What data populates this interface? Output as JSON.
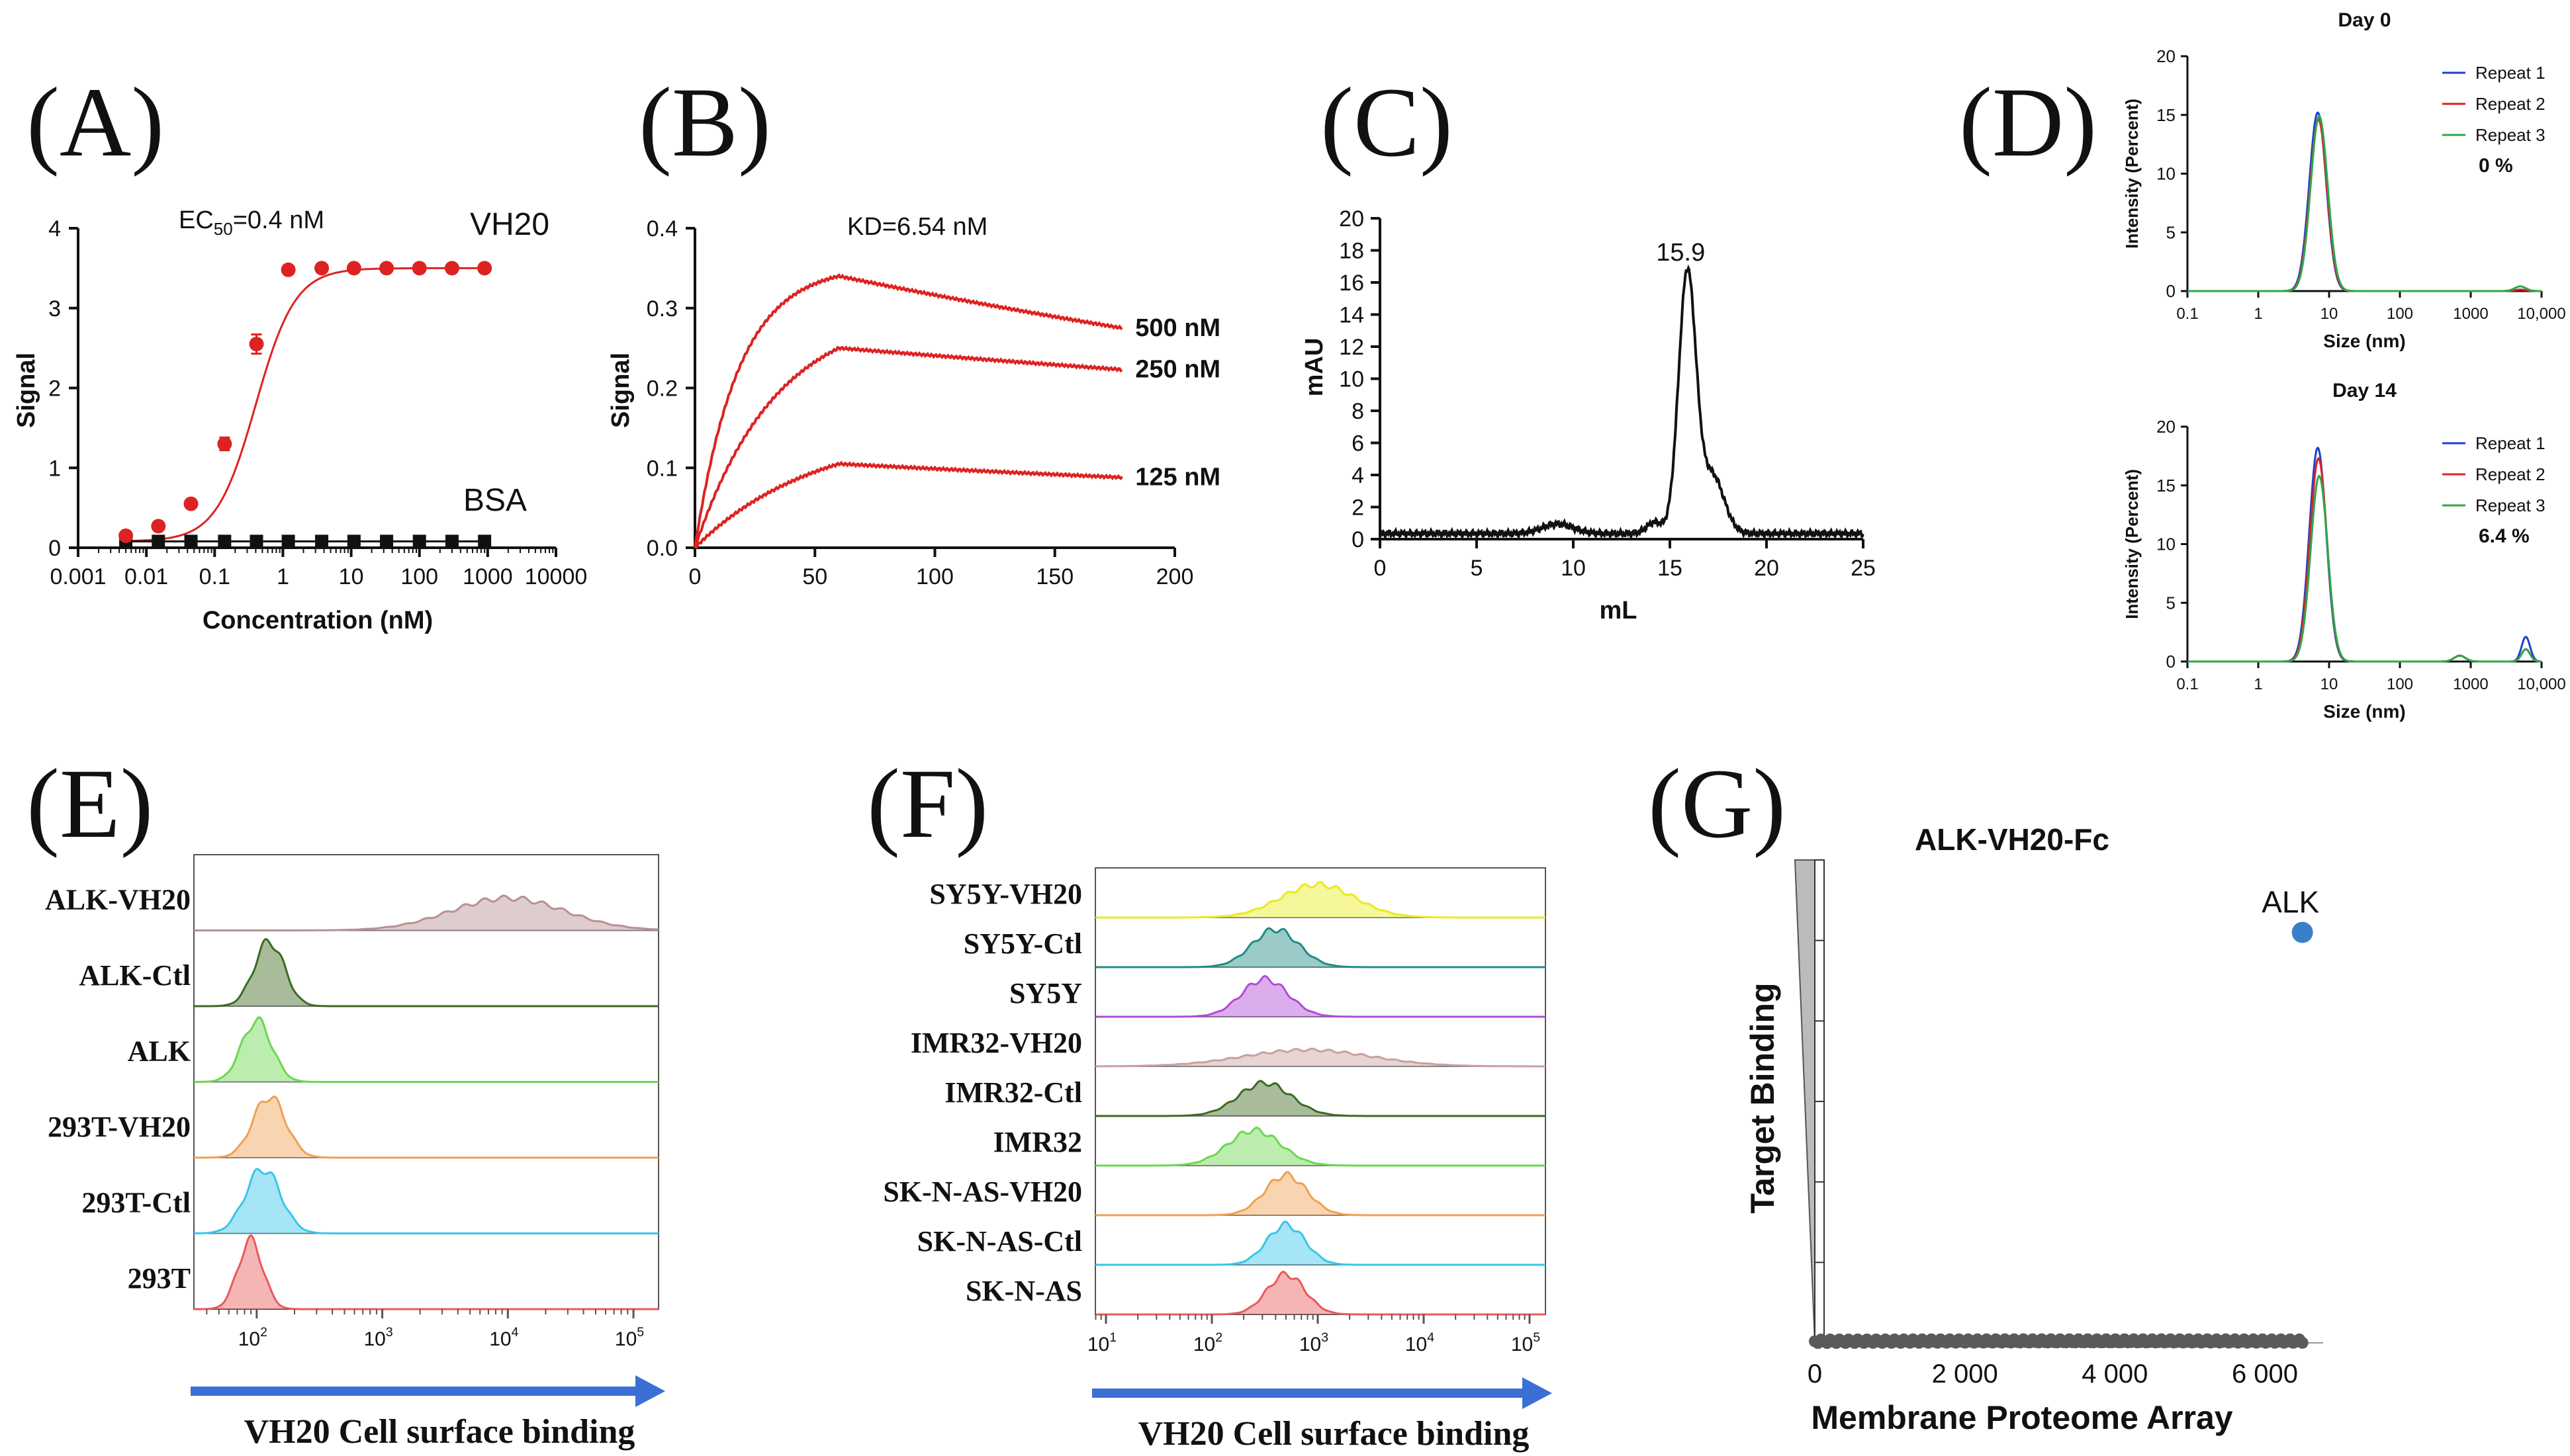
{
  "colors": {
    "red": "#dd2222",
    "blue": "#1f3fd0",
    "green": "#2aa84a",
    "arrow": "#3b6fd4",
    "dot": "#3a80c8"
  },
  "chart_data": [
    {
      "type": "scatter",
      "panel": "(A)",
      "ec50_prefix": "EC",
      "ec50_sub": "50",
      "ec50_value": "=0.4 nM",
      "xlabel": "Concentration (nM)",
      "ylabel": "Signal",
      "xscale": "log",
      "xlim": [
        0.001,
        10000
      ],
      "ylim": [
        0,
        4
      ],
      "xticks": [
        "0.001",
        "0.01",
        "0.1",
        "1",
        "10",
        "100",
        "1000",
        "10000"
      ],
      "yticks": [
        "0",
        "1",
        "2",
        "3",
        "4"
      ],
      "series": [
        {
          "name": "VH20",
          "color": "#dd2222",
          "x": [
            0.005,
            0.015,
            0.045,
            0.14,
            0.41,
            1.2,
            3.7,
            11,
            33,
            100,
            300,
            900
          ],
          "y": [
            0.15,
            0.27,
            0.55,
            1.3,
            2.55,
            3.48,
            3.5,
            3.5,
            3.5,
            3.5,
            3.5,
            3.5
          ],
          "err": [
            0.03,
            0.03,
            0.04,
            0.08,
            0.12,
            0.04,
            0.03,
            0.03,
            0.03,
            0.03,
            0.03,
            0.03
          ]
        },
        {
          "name": "BSA",
          "color": "#111111",
          "x": [
            0.005,
            0.015,
            0.045,
            0.14,
            0.41,
            1.2,
            3.7,
            11,
            33,
            100,
            300,
            900
          ],
          "y": [
            0.08,
            0.08,
            0.08,
            0.08,
            0.08,
            0.08,
            0.08,
            0.08,
            0.08,
            0.08,
            0.08,
            0.08
          ]
        }
      ],
      "fit": {
        "bottom": 0.08,
        "top": 3.5,
        "ec50": 0.4,
        "hill": 1.5
      }
    },
    {
      "type": "line",
      "panel": "(B)",
      "kd": "KD=6.54 nM",
      "ylabel": "Signal",
      "xlim": [
        0,
        200
      ],
      "ylim": [
        0,
        0.4
      ],
      "xticks": [
        "0",
        "50",
        "100",
        "150",
        "200"
      ],
      "yticks": [
        "0.0",
        "0.1",
        "0.2",
        "0.3",
        "0.4"
      ],
      "assoc_end": 60,
      "t_end": 178,
      "series": [
        {
          "name": "500 nM",
          "peak": 0.34,
          "k_on": 0.055,
          "end": 0.275,
          "color": "#dd2222"
        },
        {
          "name": "250 nM",
          "peak": 0.25,
          "k_on": 0.03,
          "end": 0.223,
          "color": "#dd2222"
        },
        {
          "name": "125 nM",
          "peak": 0.105,
          "k_on": 0.02,
          "end": 0.088,
          "color": "#dd2222"
        }
      ]
    },
    {
      "type": "line",
      "panel": "(C)",
      "xlabel": "mL",
      "ylabel": "mAU",
      "xlim": [
        0,
        25
      ],
      "ylim": [
        0,
        20
      ],
      "xticks": [
        "0",
        "5",
        "10",
        "15",
        "20",
        "25"
      ],
      "yticks": [
        "0",
        "2",
        "4",
        "6",
        "8",
        "10",
        "12",
        "14",
        "16",
        "18",
        "20"
      ],
      "peak_label": "15.9",
      "peaks": [
        {
          "x": 15.9,
          "h": 16.2,
          "w": 0.45
        },
        {
          "x": 17.2,
          "h": 3.6,
          "w": 0.6
        },
        {
          "x": 9.2,
          "h": 0.6,
          "w": 0.8
        },
        {
          "x": 14.2,
          "h": 0.7,
          "w": 0.4
        }
      ],
      "baseline": 0.35
    },
    {
      "type": "line",
      "panel": "(D)",
      "xlabel": "Size (nm)",
      "ylabel": "Intensity (Percent)",
      "xticks": [
        "0.1",
        "1",
        "10",
        "100",
        "1000",
        "10,000"
      ],
      "subplots": [
        {
          "title": "Day 0",
          "pct": "0 %",
          "yticks": [
            "0",
            "5",
            "10",
            "15",
            "20"
          ],
          "ylim": [
            0,
            20
          ],
          "series": [
            {
              "name": "Repeat 1",
              "color": "#1f3fd0",
              "peak": 15.2
            },
            {
              "name": "Repeat 2",
              "color": "#dd2222",
              "peak": 14.6
            },
            {
              "name": "Repeat 3",
              "color": "#2aa84a",
              "peak": 14.9
            }
          ],
          "tail": {
            "x": 5000,
            "h": 0.4
          }
        },
        {
          "title": "Day 14",
          "pct": "6.4 %",
          "yticks": [
            "0",
            "5",
            "10",
            "15",
            "20"
          ],
          "ylim": [
            0,
            20
          ],
          "series": [
            {
              "name": "Repeat 1",
              "color": "#1f3fd0",
              "peak": 18.2
            },
            {
              "name": "Repeat 2",
              "color": "#dd2222",
              "peak": 17.3
            },
            {
              "name": "Repeat 3",
              "color": "#2aa84a",
              "peak": 15.8
            }
          ],
          "tail": {
            "x": 700,
            "h": 0.5,
            "x2": 6000,
            "h2": 2.1
          }
        }
      ]
    },
    {
      "type": "area",
      "panel": "(E)",
      "xlabel": "VH20 Cell surface binding",
      "xticks": [
        {
          "b": "10",
          "e": "2"
        },
        {
          "b": "10",
          "e": "3"
        },
        {
          "b": "10",
          "e": "4"
        },
        {
          "b": "10",
          "e": "5"
        }
      ],
      "rows": [
        {
          "label": "ALK-VH20",
          "color": "#b88f92",
          "center": 4.0,
          "spread": 0.45,
          "height": 0.45
        },
        {
          "label": "ALK-Ctl",
          "color": "#3d6a22",
          "center": 2.1,
          "spread": 0.12,
          "height": 0.9
        },
        {
          "label": "ALK",
          "color": "#6bd84e",
          "center": 2.0,
          "spread": 0.12,
          "height": 0.85
        },
        {
          "label": "293T-VH20",
          "color": "#f0a050",
          "center": 2.1,
          "spread": 0.13,
          "height": 0.85
        },
        {
          "label": "293T-Ctl",
          "color": "#38c6e8",
          "center": 2.05,
          "spread": 0.14,
          "height": 0.9
        },
        {
          "label": "293T",
          "color": "#e85a5a",
          "center": 1.95,
          "spread": 0.1,
          "height": 0.95
        }
      ]
    },
    {
      "type": "area",
      "panel": "(F)",
      "xlabel": "VH20 Cell surface binding",
      "xticks": [
        {
          "b": "10",
          "e": "1"
        },
        {
          "b": "10",
          "e": "2"
        },
        {
          "b": "10",
          "e": "3"
        },
        {
          "b": "10",
          "e": "4"
        },
        {
          "b": "10",
          "e": "5"
        }
      ],
      "rows": [
        {
          "label": "SY5Y-VH20",
          "color": "#eaea20",
          "center": 3.0,
          "spread": 0.35,
          "height": 0.7
        },
        {
          "label": "SY5Y-Ctl",
          "color": "#1f8c84",
          "center": 2.6,
          "spread": 0.22,
          "height": 0.8
        },
        {
          "label": "SY5Y",
          "color": "#b24ad8",
          "center": 2.5,
          "spread": 0.22,
          "height": 0.8
        },
        {
          "label": "IMR32-VH20",
          "color": "#c9a0a0",
          "center": 2.9,
          "spread": 0.6,
          "height": 0.35
        },
        {
          "label": "IMR32-Ctl",
          "color": "#3d6a22",
          "center": 2.5,
          "spread": 0.25,
          "height": 0.7
        },
        {
          "label": "IMR32",
          "color": "#6bd84e",
          "center": 2.4,
          "spread": 0.25,
          "height": 0.75
        },
        {
          "label": "SK-N-AS-VH20",
          "color": "#f0a050",
          "center": 2.7,
          "spread": 0.2,
          "height": 0.85
        },
        {
          "label": "SK-N-AS-Ctl",
          "color": "#38c6e8",
          "center": 2.7,
          "spread": 0.18,
          "height": 0.85
        },
        {
          "label": "SK-N-AS",
          "color": "#e85a5a",
          "center": 2.7,
          "spread": 0.18,
          "height": 0.85
        }
      ]
    },
    {
      "type": "scatter",
      "panel": "(G)",
      "title": "ALK-VH20-Fc",
      "xlabel": "Membrane Proteome Array",
      "ylabel": "Target Binding",
      "xlim": [
        0,
        6600
      ],
      "ylim": [
        0,
        6
      ],
      "xticks": [
        "0",
        "2 000",
        "4 000",
        "6 000"
      ],
      "highlight": {
        "label": "ALK",
        "x": 6500,
        "y": 5.1
      },
      "background": {
        "n": 6500,
        "y": 0.02
      }
    }
  ]
}
